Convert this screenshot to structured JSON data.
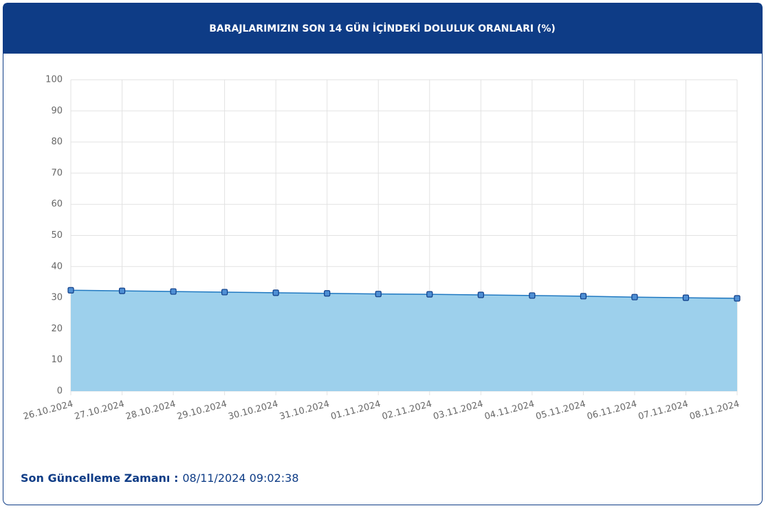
{
  "chart_data": {
    "type": "line",
    "title": "BARAJLARIMIZIN SON 14 GÜN İÇİNDEKİ DOLULUK ORANLARI (%)",
    "categories": [
      "26.10.2024",
      "27.10.2024",
      "28.10.2024",
      "29.10.2024",
      "30.10.2024",
      "31.10.2024",
      "01.11.2024",
      "02.11.2024",
      "03.11.2024",
      "04.11.2024",
      "05.11.2024",
      "06.11.2024",
      "07.11.2024",
      "08.11.2024"
    ],
    "series": [
      {
        "color": "#1f78c1",
        "fill": "#9dd0ec",
        "values": [
          32.4,
          32.2,
          32.0,
          31.8,
          31.6,
          31.4,
          31.2,
          31.1,
          30.9,
          30.7,
          30.5,
          30.2,
          30.0,
          29.8
        ]
      }
    ],
    "area": true,
    "ylim": [
      0,
      100
    ],
    "yticks": [
      0,
      10,
      20,
      30,
      40,
      50,
      60,
      70,
      80,
      90,
      100
    ],
    "grid": true
  },
  "footer": {
    "label": "Son Güncelleme Zamanı :",
    "value": "08/11/2024 09:02:38"
  }
}
